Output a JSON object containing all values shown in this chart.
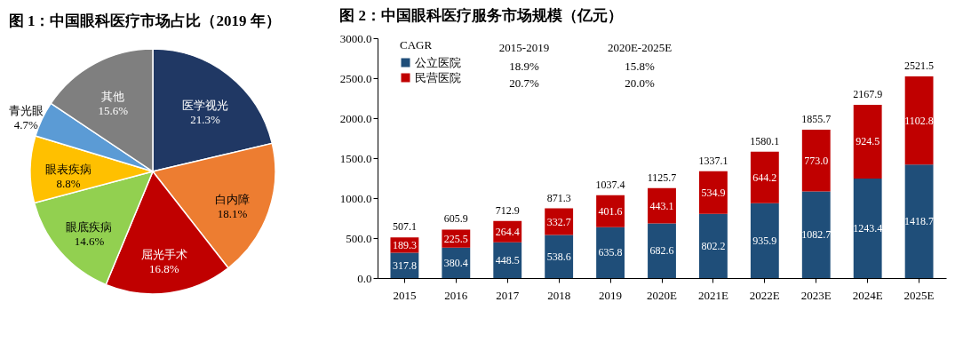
{
  "chart_data": [
    {
      "type": "pie",
      "title": "图 1：中国眼科医疗市场占比（2019 年）",
      "categories": [
        "医学视光",
        "白内障",
        "屈光手术",
        "眼底疾病",
        "眼表疾病",
        "青光眼",
        "其他"
      ],
      "values": [
        21.3,
        18.1,
        16.8,
        14.6,
        8.8,
        4.7,
        15.6
      ],
      "colors": [
        "#203864",
        "#ed7d31",
        "#c00000",
        "#92d050",
        "#ffc000",
        "#5b9bd5",
        "#7f7f7f"
      ],
      "value_labels": [
        "21.3%",
        "18.1%",
        "16.8%",
        "14.6%",
        "8.8%",
        "4.7%",
        "15.6%"
      ],
      "legend": false
    },
    {
      "type": "bar",
      "title": "图 2：中国眼科医疗服务市场规模（亿元）",
      "stacked": true,
      "categories": [
        "2015",
        "2016",
        "2017",
        "2018",
        "2019",
        "2020E",
        "2021E",
        "2022E",
        "2023E",
        "2024E",
        "2025E"
      ],
      "series": [
        {
          "name": "公立医院",
          "color": "#1f4e79",
          "values": [
            317.8,
            380.4,
            448.5,
            538.6,
            635.8,
            682.6,
            802.2,
            935.9,
            1082.7,
            1243.4,
            1418.7
          ]
        },
        {
          "name": "民营医院",
          "color": "#c00000",
          "values": [
            189.3,
            225.5,
            264.4,
            332.7,
            401.6,
            443.1,
            534.9,
            644.2,
            773.0,
            924.5,
            1102.8
          ],
          "value_labels": [
            "189.3",
            "225.5",
            "264.4",
            "332.7",
            "401.6",
            "443.1",
            "534.9",
            "644.2",
            "773.0",
            "924.5",
            "1102.8"
          ]
        }
      ],
      "totals": [
        "507.1",
        "605.9",
        "712.9",
        "871.3",
        "1037.4",
        "1125.7",
        "1337.1",
        "1580.1",
        "1855.7",
        "2167.9",
        "2521.5"
      ],
      "data_labels": true,
      "ylim": [
        0,
        3000
      ],
      "yticks": [
        {
          "value": 0,
          "label": "0.0"
        },
        {
          "value": 500,
          "label": "500.0"
        },
        {
          "value": 1000,
          "label": "1000.0"
        },
        {
          "value": 1500,
          "label": "1500.0"
        },
        {
          "value": 2000,
          "label": "2000.0"
        },
        {
          "value": 2500,
          "label": "2500.0"
        },
        {
          "value": 3000,
          "label": "3000.0"
        }
      ],
      "legend": "top left",
      "legend_title": "CAGR",
      "grid": false,
      "annotations": [
        "2015-2019",
        "2020E-2025E",
        "18.9%",
        "15.8%",
        "20.7%",
        "20.0%"
      ]
    }
  ]
}
